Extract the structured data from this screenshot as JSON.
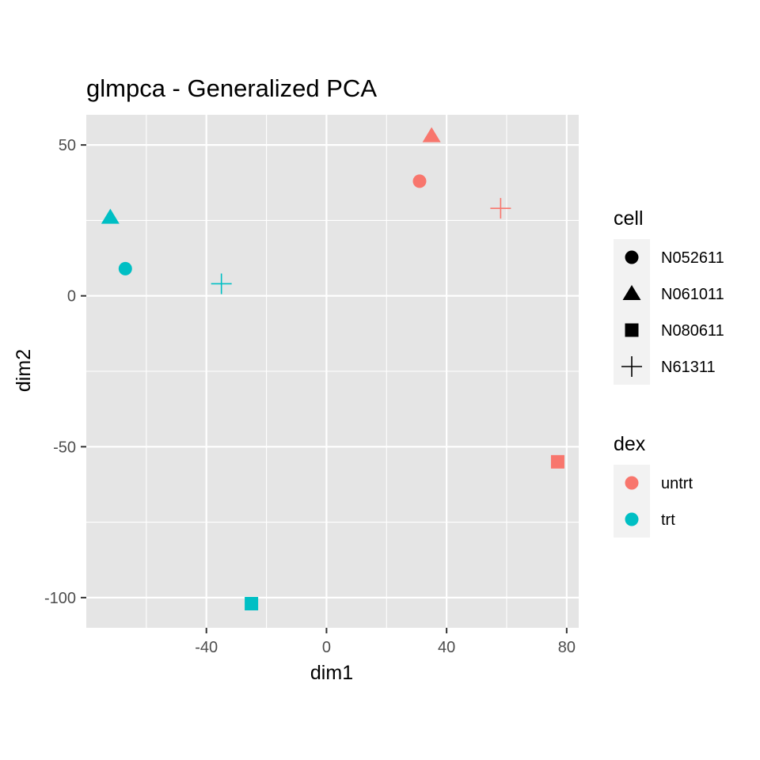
{
  "chart_data": {
    "type": "scatter",
    "title": "glmpca - Generalized PCA",
    "xlabel": "dim1",
    "ylabel": "dim2",
    "xlim": [
      -80,
      84
    ],
    "ylim": [
      -110,
      60
    ],
    "x_ticks": [
      -40,
      0,
      40,
      80
    ],
    "x_tick_labels": [
      "-40",
      "0",
      "40",
      "80"
    ],
    "y_ticks": [
      -100,
      -50,
      0,
      50
    ],
    "y_tick_labels": [
      "-100",
      "-50",
      "0",
      "50"
    ],
    "grid": true,
    "colors": {
      "panel_bg": "#e5e5e5",
      "grid": "#ffffff",
      "untrt": "#f8766d",
      "trt": "#00bfc4"
    },
    "points": [
      {
        "cell": "N052611",
        "dex": "untrt",
        "x": 31,
        "y": 38
      },
      {
        "cell": "N061011",
        "dex": "untrt",
        "x": 35,
        "y": 53
      },
      {
        "cell": "N080611",
        "dex": "untrt",
        "x": 77,
        "y": -55
      },
      {
        "cell": "N61311",
        "dex": "untrt",
        "x": 58,
        "y": 29
      },
      {
        "cell": "N052611",
        "dex": "trt",
        "x": -67,
        "y": 9
      },
      {
        "cell": "N061011",
        "dex": "trt",
        "x": -72,
        "y": 26
      },
      {
        "cell": "N080611",
        "dex": "trt",
        "x": -25,
        "y": -102
      },
      {
        "cell": "N61311",
        "dex": "trt",
        "x": -35,
        "y": 4
      }
    ],
    "legends": [
      {
        "title": "cell",
        "aesthetic": "shape",
        "entries": [
          {
            "label": "N052611",
            "shape": "circle"
          },
          {
            "label": "N061011",
            "shape": "triangle"
          },
          {
            "label": "N080611",
            "shape": "square"
          },
          {
            "label": "N61311",
            "shape": "plus"
          }
        ]
      },
      {
        "title": "dex",
        "aesthetic": "color",
        "entries": [
          {
            "label": "untrt",
            "color": "#f8766d"
          },
          {
            "label": "trt",
            "color": "#00bfc4"
          }
        ]
      }
    ]
  }
}
